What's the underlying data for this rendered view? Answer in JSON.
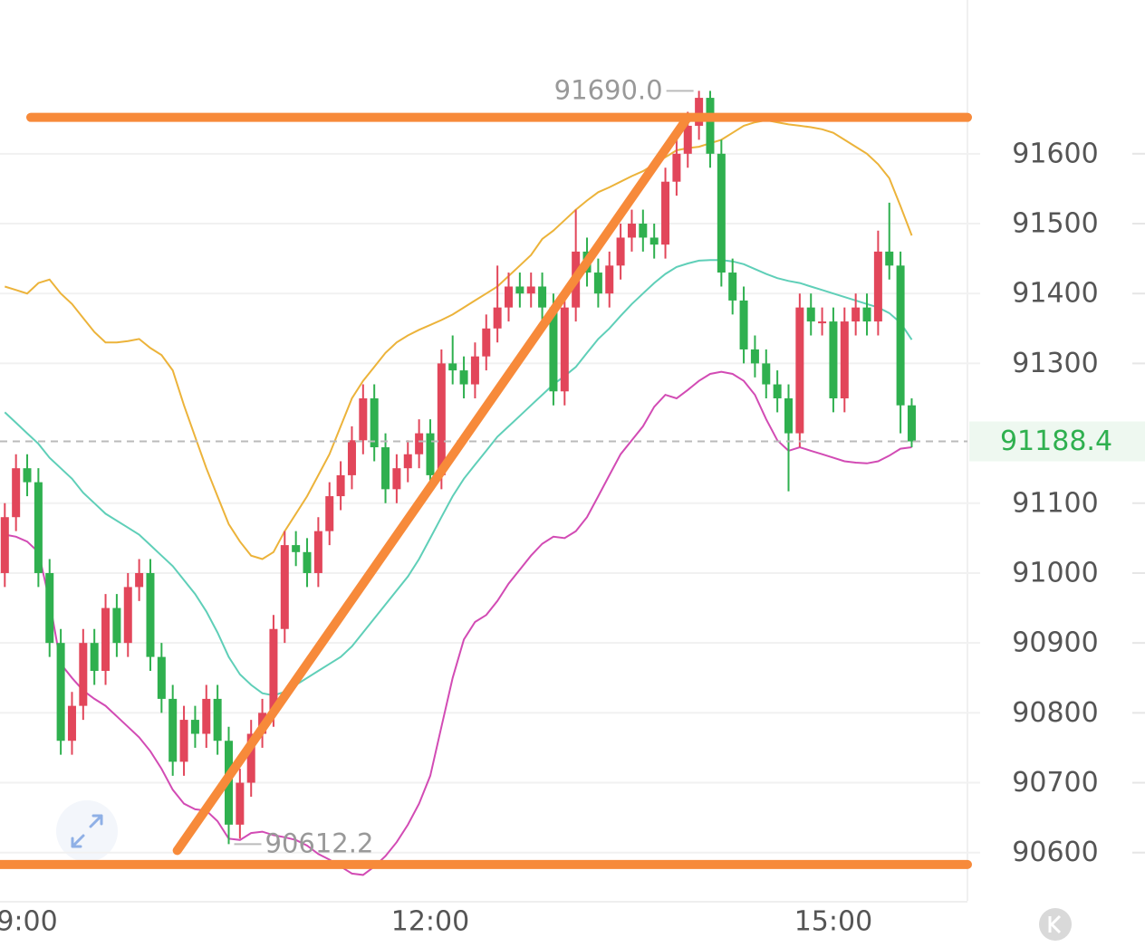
{
  "chart_data": {
    "type": "candlestick",
    "categories": [
      null,
      null,
      "9:00",
      null,
      null,
      null,
      null,
      null,
      null,
      null,
      null,
      null,
      null,
      null,
      null,
      null,
      null,
      null,
      null,
      null,
      null,
      null,
      null,
      null,
      null,
      null,
      null,
      null,
      null,
      null,
      null,
      null,
      null,
      null,
      null,
      null,
      null,
      null,
      "12:00",
      null,
      null,
      null,
      null,
      null,
      null,
      null,
      null,
      null,
      null,
      null,
      null,
      null,
      null,
      null,
      null,
      null,
      null,
      null,
      null,
      null,
      null,
      null,
      null,
      null,
      null,
      null,
      null,
      null,
      null,
      null,
      null,
      null,
      null,
      null,
      "15:00",
      null,
      null,
      null,
      null,
      null,
      null,
      null
    ],
    "open": [
      91000,
      91080,
      91150,
      91130,
      91000,
      90900,
      90760,
      90810,
      90900,
      90860,
      90950,
      90900,
      90980,
      91000,
      90880,
      90820,
      90730,
      90790,
      90770,
      90820,
      90760,
      90640,
      90700,
      90770,
      90800,
      90920,
      91040,
      91030,
      91000,
      91060,
      91110,
      91140,
      91190,
      91250,
      91180,
      91120,
      91150,
      91170,
      91200,
      91140,
      91300,
      91290,
      91270,
      91310,
      91350,
      91380,
      91410,
      91400,
      91410,
      91380,
      91260,
      91380,
      91460,
      91430,
      91400,
      91440,
      91480,
      91500,
      91480,
      91470,
      91560,
      91600,
      91640,
      91680,
      91600,
      91430,
      91390,
      91320,
      91300,
      91270,
      91250,
      91200,
      91380,
      91360,
      91360,
      91250,
      91360,
      91380,
      91360,
      91460,
      91440,
      91240
    ],
    "high": [
      91100,
      91170,
      91170,
      91150,
      91020,
      90920,
      90830,
      90920,
      90920,
      90970,
      90970,
      91000,
      91020,
      91020,
      90900,
      90840,
      90810,
      90810,
      90840,
      90840,
      90780,
      90720,
      90790,
      90820,
      90940,
      91060,
      91060,
      91050,
      91080,
      91130,
      91160,
      91210,
      91270,
      91270,
      91200,
      91170,
      91190,
      91220,
      91220,
      91320,
      91340,
      91310,
      91330,
      91370,
      91440,
      91430,
      91430,
      91430,
      91430,
      91400,
      91400,
      91520,
      91480,
      91450,
      91460,
      91500,
      91520,
      91520,
      91500,
      91580,
      91620,
      91660,
      91690,
      91690,
      91620,
      91450,
      91410,
      91340,
      91320,
      91290,
      91270,
      91400,
      91400,
      91380,
      91380,
      91380,
      91400,
      91400,
      91490,
      91530,
      91460,
      91250
    ],
    "low": [
      90980,
      91060,
      91110,
      90980,
      90880,
      90740,
      90740,
      90790,
      90840,
      90840,
      90880,
      90880,
      90960,
      90860,
      90800,
      90710,
      90710,
      90750,
      90750,
      90740,
      90612.2,
      90620,
      90680,
      90750,
      90780,
      90900,
      91010,
      90980,
      90980,
      91040,
      91090,
      91120,
      91170,
      91160,
      91100,
      91100,
      91130,
      91150,
      91120,
      91120,
      91270,
      91250,
      91250,
      91290,
      91330,
      91360,
      91380,
      91380,
      91360,
      91240,
      91240,
      91360,
      91410,
      91380,
      91380,
      91420,
      91460,
      91460,
      91450,
      91450,
      91540,
      91580,
      91620,
      91580,
      91410,
      91370,
      91300,
      91280,
      91250,
      91230,
      91117,
      91180,
      91340,
      91340,
      91230,
      91230,
      91340,
      91340,
      91340,
      91420,
      91200,
      91180
    ],
    "close": [
      91080,
      91150,
      91130,
      91000,
      90900,
      90760,
      90810,
      90900,
      90860,
      90950,
      90900,
      90980,
      91000,
      90880,
      90820,
      90730,
      90790,
      90770,
      90820,
      90760,
      90640,
      90700,
      90770,
      90800,
      90920,
      91040,
      91030,
      91000,
      91060,
      91110,
      91140,
      91190,
      91250,
      91180,
      91120,
      91150,
      91170,
      91200,
      91140,
      91300,
      91290,
      91270,
      91310,
      91350,
      91380,
      91410,
      91400,
      91410,
      91380,
      91260,
      91380,
      91460,
      91430,
      91400,
      91440,
      91480,
      91500,
      91480,
      91470,
      91560,
      91600,
      91640,
      91680,
      91600,
      91430,
      91390,
      91320,
      91300,
      91270,
      91250,
      91200,
      91380,
      91360,
      91360,
      91250,
      91360,
      91380,
      91360,
      91460,
      91440,
      91240,
      91188.4
    ],
    "up_color": "#e2465a",
    "down_color": "#2fb04f",
    "overlays": [
      {
        "color": "#ecb33a",
        "values": [
          91410,
          91405,
          91400,
          91415,
          91420,
          91400,
          91385,
          91365,
          91345,
          91330,
          91330,
          91332,
          91335,
          91322,
          91312,
          91290,
          91240,
          91195,
          91150,
          91110,
          91070,
          91045,
          91025,
          91020,
          91030,
          91060,
          91085,
          91110,
          91140,
          91170,
          91210,
          91250,
          91275,
          91295,
          91315,
          91330,
          91340,
          91348,
          91355,
          91362,
          91370,
          91380,
          91390,
          91400,
          91410,
          91425,
          91440,
          91455,
          91478,
          91490,
          91505,
          91520,
          91533,
          91545,
          91552,
          91560,
          91568,
          91575,
          91585,
          91595,
          91605,
          91608,
          91610,
          91615,
          91620,
          91630,
          91640,
          91645,
          91648,
          91645,
          91642,
          91640,
          91638,
          91635,
          91630,
          91620,
          91610,
          91600,
          91585,
          91565,
          91525,
          91483
        ]
      },
      {
        "color": "#5fcfb8",
        "values": [
          91230,
          91215,
          91200,
          91185,
          91165,
          91150,
          91135,
          91115,
          91100,
          91085,
          91075,
          91065,
          91055,
          91040,
          91025,
          91010,
          90990,
          90970,
          90945,
          90915,
          90880,
          90855,
          90840,
          90828,
          90825,
          90830,
          90840,
          90850,
          90860,
          90870,
          90880,
          90895,
          90915,
          90935,
          90955,
          90975,
          90995,
          91020,
          91050,
          91080,
          91110,
          91135,
          91155,
          91175,
          91195,
          91210,
          91225,
          91240,
          91255,
          91270,
          91282,
          91295,
          91315,
          91335,
          91350,
          91368,
          91385,
          91400,
          91415,
          91428,
          91438,
          91443,
          91447,
          91448,
          91448,
          91446,
          91442,
          91435,
          91428,
          91422,
          91418,
          91415,
          91410,
          91405,
          91400,
          91395,
          91390,
          91385,
          91380,
          91372,
          91358,
          91334
        ]
      },
      {
        "color": "#d24bb4",
        "values": [
          91055,
          91052,
          91045,
          91030,
          90960,
          90870,
          90850,
          90832,
          90820,
          90810,
          90795,
          90780,
          90765,
          90745,
          90720,
          90690,
          90670,
          90662,
          90660,
          90645,
          90620,
          90618,
          90628,
          90630,
          90625,
          90622,
          90618,
          90610,
          90598,
          90590,
          90580,
          90570,
          90568,
          90580,
          90595,
          90615,
          90640,
          90670,
          90710,
          90780,
          90850,
          90905,
          90930,
          90940,
          90960,
          90985,
          91005,
          91025,
          91042,
          91052,
          91050,
          91060,
          91080,
          91110,
          91140,
          91170,
          91190,
          91210,
          91238,
          91255,
          91250,
          91262,
          91275,
          91285,
          91288,
          91285,
          91275,
          91255,
          91220,
          91190,
          91175,
          91180,
          91175,
          91170,
          91165,
          91160,
          91158,
          91157,
          91160,
          91168,
          91178,
          91180
        ]
      }
    ],
    "ylim": [
      90531,
      91820
    ],
    "yticks": [
      90600,
      90700,
      90800,
      90900,
      91000,
      91100,
      91300,
      91400,
      91500,
      91600
    ],
    "grid": true,
    "high_label": {
      "value": 91690,
      "label": "91690.0"
    },
    "low_label": 90612.2,
    "last_price": 91188.4,
    "drawings": {
      "color": "#f78a3a",
      "hlines": [
        91652,
        90583
      ],
      "trendline": {
        "x": [
          15.4,
          61
        ],
        "y": [
          90603,
          91652
        ]
      }
    }
  }
}
